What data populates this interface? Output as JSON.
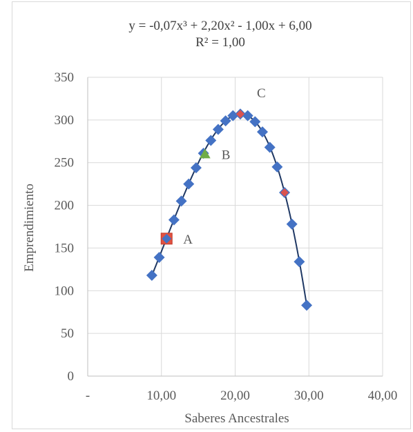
{
  "chart_data": {
    "type": "scatter",
    "xlabel": "Saberes Ancestrales",
    "ylabel": "Emprendimiento",
    "xlim": [
      0,
      40
    ],
    "ylim": [
      0,
      350
    ],
    "x_ticks": [
      0,
      10,
      20,
      30,
      40
    ],
    "x_tick_labels": [
      "-",
      "10,00",
      "20,00",
      "30,00",
      "40,00"
    ],
    "y_ticks": [
      0,
      50,
      100,
      150,
      200,
      250,
      300,
      350
    ],
    "y_tick_labels": [
      "0",
      "50",
      "100",
      "150",
      "200",
      "250",
      "300",
      "350"
    ],
    "grid": true,
    "trendline": {
      "type": "polynomial-3",
      "coefficients": {
        "a3": -0.07,
        "a2": 2.2,
        "a1": -1.0,
        "a0": 6.0
      },
      "equation_text": "y = -0,07x³ + 2,20x² - 1,00x + 6,00",
      "r2_text": "R² = 1,00",
      "x_range": [
        8.7,
        29.7
      ],
      "color": "#1f3864"
    },
    "series": [
      {
        "marker": "diamond",
        "color": "#4472c4",
        "x": [
          8.7,
          9.7,
          10.7,
          11.7,
          12.7,
          13.7,
          14.7,
          15.7,
          16.7,
          17.7,
          18.7,
          19.7,
          20.7,
          21.7,
          22.7,
          23.7,
          24.7,
          25.7,
          26.7,
          27.7,
          28.7,
          29.7
        ],
        "y": [
          118,
          139,
          161,
          183,
          205,
          225,
          244,
          261,
          276,
          289,
          299,
          305,
          307,
          305,
          298,
          286,
          268,
          245,
          215,
          178,
          134,
          83
        ]
      }
    ],
    "highlighted_points": [
      {
        "label": "A",
        "x": 10.7,
        "y": 161,
        "marker": "square",
        "color": "#e15241",
        "edge": "#c0392b"
      },
      {
        "label": "B",
        "x": 15.9,
        "y": 260,
        "marker": "triangle",
        "color": "#70ad47"
      },
      {
        "label": "C",
        "x": 20.7,
        "y": 307,
        "marker": "diamond",
        "color": "#d9534f"
      }
    ],
    "extra_points": [
      {
        "x": 26.7,
        "y": 215,
        "marker": "diamond",
        "color": "#d9534f"
      }
    ]
  }
}
